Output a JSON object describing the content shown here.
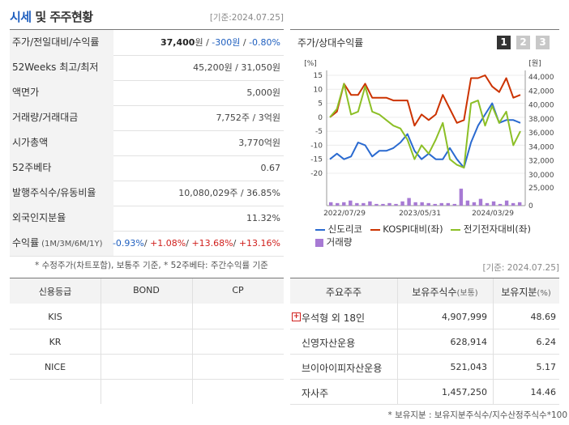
{
  "header": {
    "title_main": "시세",
    "title_rest": " 및 주주현황",
    "base_date": "[기준:2024.07.25]"
  },
  "stats": [
    {
      "label": "주가/전일대비/수익률",
      "value_parts": [
        {
          "text": "37,400",
          "cls": "bold"
        },
        {
          "text": "원 / ",
          "cls": ""
        },
        {
          "text": "-300원",
          "cls": "neg"
        },
        {
          "text": " / ",
          "cls": ""
        },
        {
          "text": "-0.80%",
          "cls": "neg"
        }
      ]
    },
    {
      "label": "52Weeks 최고/최저",
      "value_parts": [
        {
          "text": "45,200원 / 31,050원",
          "cls": ""
        }
      ]
    },
    {
      "label": "액면가",
      "value_parts": [
        {
          "text": "5,000원",
          "cls": ""
        }
      ]
    },
    {
      "label": "거래량/거래대금",
      "value_parts": [
        {
          "text": "7,752주 / 3억원",
          "cls": ""
        }
      ]
    },
    {
      "label": "시가총액",
      "value_parts": [
        {
          "text": "3,770억원",
          "cls": ""
        }
      ]
    },
    {
      "label": "52주베타",
      "value_parts": [
        {
          "text": "0.67",
          "cls": ""
        }
      ]
    },
    {
      "label": "발행주식수/유동비율",
      "value_parts": [
        {
          "text": "10,080,029주 / 36.85%",
          "cls": ""
        }
      ]
    },
    {
      "label": "외국인지분율",
      "value_parts": [
        {
          "text": "11.32%",
          "cls": ""
        }
      ]
    },
    {
      "label": "수익률",
      "label_small": "(1M/3M/6M/1Y)",
      "value_parts": [
        {
          "text": "-0.93%",
          "cls": "neg"
        },
        {
          "text": "/ ",
          "cls": ""
        },
        {
          "text": "+1.08%",
          "cls": "pos"
        },
        {
          "text": "/ ",
          "cls": ""
        },
        {
          "text": "+13.68%",
          "cls": "pos"
        },
        {
          "text": "/ ",
          "cls": ""
        },
        {
          "text": "+13.16%",
          "cls": "pos"
        }
      ]
    }
  ],
  "stats_note": "* 수정주가(차트포함), 보통주 기준, * 52주베타: 주간수익률 기준",
  "chart_panel": {
    "title": "주가/상대수익률",
    "pages": [
      "1",
      "2",
      "3"
    ],
    "left_unit": "[%]",
    "right_unit": "[원]"
  },
  "chart_data": {
    "type": "line",
    "x_ticks": [
      "2022/07/29",
      "2023/05/31",
      "2024/03/29"
    ],
    "left_axis": {
      "ticks": [
        "15",
        "10",
        "5",
        "0",
        "-5",
        "-10",
        "-15",
        "-20"
      ],
      "range": [
        -20,
        15
      ]
    },
    "right_axis": {
      "ticks": [
        "44,000",
        "42,000",
        "40,000",
        "38,000",
        "36,000",
        "34,000",
        "32,000",
        "30,000"
      ],
      "range": [
        30000,
        44000
      ]
    },
    "volume_axis": {
      "ticks": [
        "25,000",
        "0"
      ],
      "range": [
        0,
        25000
      ]
    },
    "series": [
      {
        "name": "신도리코",
        "color": "#2a6ad0",
        "axis": "left",
        "values": [
          -15,
          -13,
          -15,
          -14,
          -9,
          -10,
          -14,
          -12,
          -12,
          -11,
          -9,
          -6,
          -12,
          -15,
          -13,
          -15,
          -15,
          -11,
          -15,
          -18,
          -9,
          -3,
          1,
          5,
          -2,
          -1,
          -1,
          -2
        ]
      },
      {
        "name": "KOSPI대비(좌)",
        "color": "#cc3300",
        "axis": "left",
        "values": [
          0,
          2,
          12,
          8,
          8,
          12,
          7,
          7,
          7,
          6,
          6,
          6,
          -3,
          1,
          -1,
          1,
          8,
          3,
          -2,
          -1,
          14,
          14,
          15,
          11,
          9,
          14,
          7,
          8
        ]
      },
      {
        "name": "전기전자대비(좌)",
        "color": "#8cbf26",
        "axis": "left",
        "values": [
          0,
          3,
          12,
          1,
          2,
          11,
          2,
          1,
          -1,
          -3,
          -4,
          -8,
          -15,
          -10,
          -13,
          -8,
          -2,
          -15,
          -17,
          -18,
          5,
          6,
          -3,
          4,
          -2,
          2,
          -10,
          -5
        ]
      }
    ],
    "volume": {
      "name": "거래량",
      "color": "#a77ad4",
      "values": [
        4,
        3,
        4,
        6,
        3,
        3,
        5,
        2,
        2,
        3,
        2,
        5,
        9,
        4,
        4,
        3,
        2,
        3,
        3,
        2,
        20,
        6,
        4,
        8,
        3,
        5,
        2,
        6,
        3,
        4
      ]
    }
  },
  "credit_table": {
    "headers": [
      "신용등급",
      "BOND",
      "CP"
    ],
    "rows": [
      [
        "KIS",
        "",
        ""
      ],
      [
        "KR",
        "",
        ""
      ],
      [
        "NICE",
        "",
        ""
      ]
    ]
  },
  "holders_base_date": "[기준: 2024.07.25]",
  "holders_table": {
    "headers": [
      "주요주주",
      "보유주식수",
      "(보통)",
      "보유지분",
      "(%)"
    ],
    "rows": [
      {
        "name": "우석형 외 18인",
        "shares": "4,907,999",
        "pct": "48.69",
        "expand": "+"
      },
      {
        "name": "신영자산운용",
        "shares": "628,914",
        "pct": "6.24",
        "expand": ""
      },
      {
        "name": "브이아이피자산운용",
        "shares": "521,043",
        "pct": "5.17",
        "expand": ""
      },
      {
        "name": "자사주",
        "shares": "1,457,250",
        "pct": "14.46",
        "expand": ""
      }
    ]
  },
  "holders_note": "* 보유지분 : 보유지분주식수/지수산정주식수*100"
}
